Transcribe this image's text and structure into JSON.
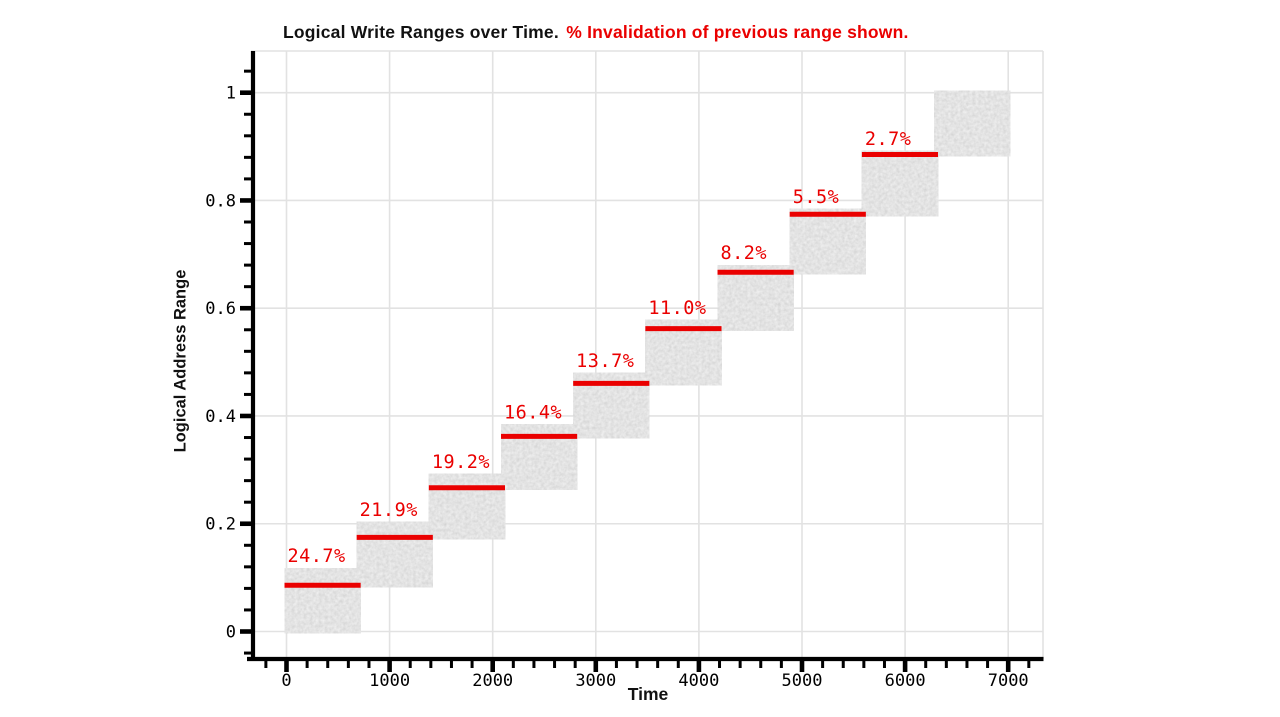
{
  "colors": {
    "accent_red": "#ea0000",
    "rect_gray": "#c6c6c6",
    "grid": "#e2e2e2",
    "axis": "#000000",
    "background": "#ffffff"
  },
  "chart_data": {
    "type": "rect-span-timeline",
    "title": "Logical Write Ranges over Time.",
    "subtitle": "% Invalidation of previous range shown.",
    "xlabel": "Time",
    "ylabel": "Logical Address Range",
    "xlim": [
      -325,
      7340
    ],
    "ylim": [
      -0.051,
      1.077
    ],
    "grid": true,
    "legend": "none",
    "x_ticks": [
      {
        "v": 0,
        "label": "0"
      },
      {
        "v": 1000,
        "label": "1000"
      },
      {
        "v": 2000,
        "label": "2000"
      },
      {
        "v": 3000,
        "label": "3000"
      },
      {
        "v": 4000,
        "label": "4000"
      },
      {
        "v": 5000,
        "label": "5000"
      },
      {
        "v": 6000,
        "label": "6000"
      },
      {
        "v": 7000,
        "label": "7000"
      }
    ],
    "x_minor": {
      "step": 200,
      "from": -200,
      "to": 7200
    },
    "y_ticks": [
      {
        "v": 0,
        "label": "0"
      },
      {
        "v": 0.2,
        "label": "0.2"
      },
      {
        "v": 0.4,
        "label": "0.4"
      },
      {
        "v": 0.6,
        "label": "0.6"
      },
      {
        "v": 0.8,
        "label": "0.8"
      },
      {
        "v": 1,
        "label": "1"
      }
    ],
    "y_minor": {
      "step": 0.04,
      "from": -0.04,
      "to": 1.04
    },
    "writes": [
      {
        "t0": 0,
        "t1": 700,
        "a0": 0.0,
        "a1": 0.114
      },
      {
        "t0": 700,
        "t1": 1400,
        "a0": 0.0858,
        "a1": 0.1998
      },
      {
        "t0": 1400,
        "t1": 2100,
        "a0": 0.1748,
        "a1": 0.2888
      },
      {
        "t0": 2100,
        "t1": 2800,
        "a0": 0.2669,
        "a1": 0.3809
      },
      {
        "t0": 2800,
        "t1": 3500,
        "a0": 0.3622,
        "a1": 0.4762
      },
      {
        "t0": 3500,
        "t1": 4200,
        "a0": 0.4606,
        "a1": 0.5746
      },
      {
        "t0": 4200,
        "t1": 4900,
        "a0": 0.5621,
        "a1": 0.6761
      },
      {
        "t0": 4900,
        "t1": 5600,
        "a0": 0.6668,
        "a1": 0.7808
      },
      {
        "t0": 5600,
        "t1": 6300,
        "a0": 0.7745,
        "a1": 0.8885
      },
      {
        "t0": 6300,
        "t1": 7000,
        "a0": 0.8854,
        "a1": 1.0
      }
    ],
    "invalidations": [
      {
        "write": 0,
        "pct": "24.7%",
        "line_a": 0.0858
      },
      {
        "write": 1,
        "pct": "21.9%",
        "line_a": 0.1748
      },
      {
        "write": 2,
        "pct": "19.2%",
        "line_a": 0.2669
      },
      {
        "write": 3,
        "pct": "16.4%",
        "line_a": 0.3622
      },
      {
        "write": 4,
        "pct": "13.7%",
        "line_a": 0.4606
      },
      {
        "write": 5,
        "pct": "11.0%",
        "line_a": 0.5621
      },
      {
        "write": 6,
        "pct": "8.2%",
        "line_a": 0.6668
      },
      {
        "write": 7,
        "pct": "5.5%",
        "line_a": 0.7745
      },
      {
        "write": 8,
        "pct": "2.7%",
        "line_a": 0.8854
      }
    ]
  }
}
